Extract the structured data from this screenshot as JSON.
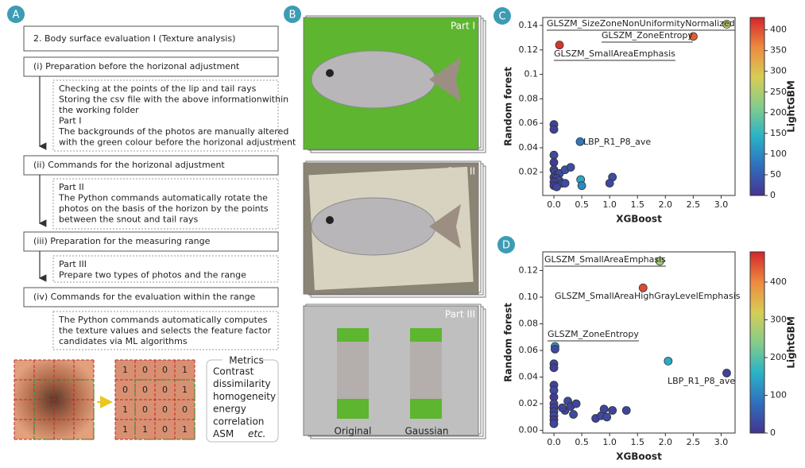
{
  "panel_a": {
    "label": "A",
    "header": "2. Body surface evaluation I (Texture analysis)",
    "steps": [
      {
        "title": "(i) Preparation before the horizonal adjustment",
        "lines": [
          "Checking at the points of the lip and tail rays",
          "Storing the csv file with the above informationwithin",
          "the working folder",
          "Part I",
          "The backgrounds of the photos are manually altered",
          "with the green colour before the horizonal adjustment"
        ]
      },
      {
        "title": "(ii) Commands for the horizonal adjustment",
        "lines": [
          "Part II",
          "The Python commands automatically rotate the",
          "photos on the basis of the horizon by the points",
          "between the snout and tail rays"
        ]
      },
      {
        "title": "(iii) Preparation for the measuring range",
        "lines": [
          "Part III",
          "Prepare two types of photos and the range"
        ]
      },
      {
        "title": "(iv) Commands for the evaluation within the range",
        "lines": [
          "The Python commands automatically computes",
          "the texture values and selects the feature factor",
          "candidates via ML algorithms"
        ]
      }
    ],
    "matrix": [
      [
        "1",
        "0",
        "0",
        "1"
      ],
      [
        "0",
        "0",
        "0",
        "1"
      ],
      [
        "1",
        "0",
        "0",
        "0"
      ],
      [
        "1",
        "1",
        "0",
        "1"
      ]
    ],
    "metrics": {
      "title": "Metrics",
      "items": [
        "Contrast",
        "dissimilarity",
        "homogeneity",
        "energy",
        "correlation",
        "ASM"
      ],
      "etc": "etc."
    }
  },
  "panel_b": {
    "label": "B",
    "parts": [
      "Part I",
      "Part II",
      "Part III"
    ],
    "captions": [
      "Original",
      "Gaussian"
    ]
  },
  "chart_data": [
    {
      "type": "scatter",
      "label": "C",
      "xlabel": "XGBoost",
      "ylabel": "Random forest",
      "colorbar_label": "LightGBM",
      "x": [
        3.1,
        2.5,
        0.1,
        0.47,
        0,
        0,
        0,
        0,
        0,
        0.02,
        0.05,
        0.1,
        0,
        0.05,
        0.1,
        0,
        0.15,
        0,
        0.05,
        0.2,
        0.2,
        0.3,
        0.48,
        0.5,
        1.05,
        1.0
      ],
      "values": [
        0.141,
        0.131,
        0.124,
        0.045,
        0.059,
        0.055,
        0.034,
        0.028,
        0.022,
        0.02,
        0.018,
        0.019,
        0.016,
        0.015,
        0.013,
        0.012,
        0.011,
        0.009,
        0.008,
        0.011,
        0.022,
        0.024,
        0.014,
        0.009,
        0.016,
        0.011
      ],
      "color_values": [
        260,
        390,
        420,
        80,
        20,
        15,
        25,
        10,
        20,
        30,
        15,
        25,
        10,
        20,
        30,
        15,
        25,
        10,
        20,
        30,
        35,
        30,
        130,
        100,
        30,
        25
      ],
      "xlim": [
        -0.2,
        3.25
      ],
      "ylim": [
        0.001,
        0.1465
      ],
      "xticks": [
        {
          "value": 0,
          "label": "0.0"
        },
        {
          "value": 0.5,
          "label": "0.5"
        },
        {
          "value": 1,
          "label": "1.0"
        },
        {
          "value": 1.5,
          "label": "1.5"
        },
        {
          "value": 2,
          "label": "2.0"
        },
        {
          "value": 2.5,
          "label": "2.5"
        },
        {
          "value": 3,
          "label": "3.0"
        }
      ],
      "yticks": [
        0.02,
        0.04,
        0.06,
        0.08,
        0.1,
        0.12,
        0.14
      ],
      "clim": [
        0,
        430
      ],
      "cticks": [
        0,
        50,
        100,
        150,
        200,
        250,
        300,
        350,
        400
      ],
      "colormap": [
        "#45348f",
        "#2f6fbe",
        "#2ab3c6",
        "#86cc8a",
        "#d7cd55",
        "#ee8a3e",
        "#d3262b"
      ],
      "annotations": [
        {
          "text": "GLSZM_SizeZoneNonUniformityNormalized",
          "underline": true
        },
        {
          "text": "GLSZM_ZoneEntropy",
          "underline": true
        },
        {
          "text": "GLSZM_SmallAreaEmphasis",
          "underline": true
        },
        {
          "text": "LBP_R1_P8_ave",
          "underline": false
        }
      ]
    },
    {
      "type": "scatter",
      "label": "D",
      "xlabel": "XGBoost",
      "ylabel": "Random forest",
      "colorbar_label": "LightGBM",
      "x": [
        1.9,
        1.6,
        0.02,
        0.02,
        2.05,
        3.1,
        0,
        0,
        0,
        0,
        0,
        0,
        0,
        0,
        0,
        0,
        0,
        0.25,
        0.2,
        0.3,
        0.35,
        0.4,
        0.75,
        0.85,
        0.9,
        1.05,
        0.95,
        1.3,
        0.15
      ],
      "values": [
        0.127,
        0.107,
        0.063,
        0.061,
        0.052,
        0.043,
        0.05,
        0.047,
        0.034,
        0.03,
        0.025,
        0.02,
        0.017,
        0.014,
        0.011,
        0.008,
        0.005,
        0.022,
        0.015,
        0.018,
        0.012,
        0.02,
        0.009,
        0.011,
        0.016,
        0.015,
        0.01,
        0.015,
        0.017
      ],
      "color_values": [
        270,
        450,
        120,
        30,
        150,
        20,
        25,
        15,
        20,
        30,
        10,
        25,
        15,
        20,
        30,
        10,
        25,
        30,
        25,
        20,
        30,
        25,
        20,
        30,
        25,
        20,
        30,
        25,
        20
      ],
      "xlim": [
        -0.2,
        3.25
      ],
      "ylim": [
        -0.002,
        0.134
      ],
      "xticks": [
        {
          "value": 0,
          "label": "0.0"
        },
        {
          "value": 0.5,
          "label": "0.5"
        },
        {
          "value": 1,
          "label": "1.0"
        },
        {
          "value": 1.5,
          "label": "1.5"
        },
        {
          "value": 2,
          "label": "2.0"
        },
        {
          "value": 2.5,
          "label": "2.5"
        },
        {
          "value": 3,
          "label": "3.0"
        }
      ],
      "yticks": [
        {
          "value": 0,
          "label": "0.00"
        },
        0.02,
        0.04,
        0.06,
        0.08,
        {
          "value": 0.1,
          "label": "0.10"
        },
        0.12
      ],
      "clim": [
        0,
        480
      ],
      "cticks": [
        0,
        100,
        200,
        300,
        400
      ],
      "colormap": [
        "#45348f",
        "#2f6fbe",
        "#2ab3c6",
        "#86cc8a",
        "#d7cd55",
        "#ee8a3e",
        "#d3262b"
      ],
      "annotations": [
        {
          "text": "GLSZM_SmallAreaEmphasis",
          "underline": true
        },
        {
          "text": "GLSZM_SmallAreaHighGrayLevelEmphasis",
          "underline": false
        },
        {
          "text": "GLSZM_ZoneEntropy",
          "underline": true
        },
        {
          "text": "LBP_R1_P8_ave",
          "underline": false
        }
      ]
    }
  ]
}
